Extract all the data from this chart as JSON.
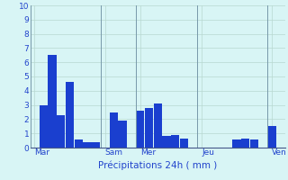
{
  "values": [
    0,
    3.0,
    6.5,
    2.3,
    4.6,
    0.6,
    0.4,
    0.4,
    0,
    2.5,
    1.9,
    0,
    2.6,
    2.8,
    3.1,
    0.8,
    0.9,
    0.65,
    0,
    0,
    0,
    0,
    0,
    0.6,
    0.65,
    0.6,
    0,
    1.5,
    0
  ],
  "day_labels": [
    "Mar",
    "Sam",
    "Mer",
    "Jeu",
    "Ven"
  ],
  "vline_positions": [
    0.0,
    8.0,
    12.0,
    19.0,
    27.0
  ],
  "xlabel": "Précipitations 24h ( mm )",
  "ylim": [
    0,
    10
  ],
  "yticks": [
    0,
    1,
    2,
    3,
    4,
    5,
    6,
    7,
    8,
    9,
    10
  ],
  "bar_color": "#1a3fcf",
  "bg_color": "#d8f5f5",
  "grid_color": "#b8d8d0",
  "tick_label_color": "#2244cc",
  "xlabel_color": "#2244cc",
  "vline_color": "#7799aa"
}
